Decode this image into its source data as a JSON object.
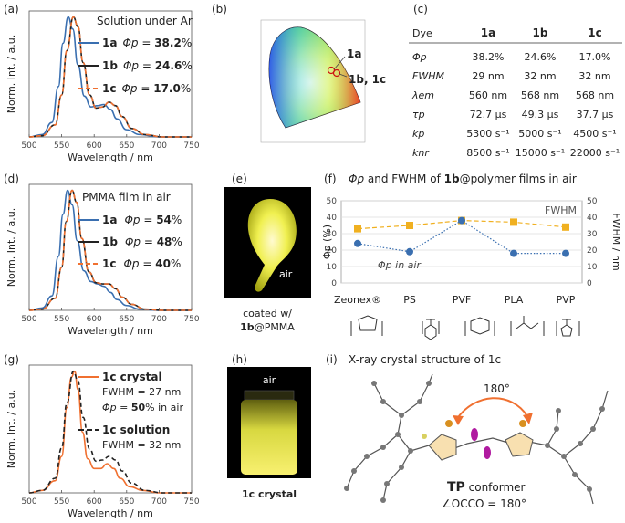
{
  "panels": {
    "a": {
      "label": "(a)",
      "title": "Solution under Ar",
      "xlabel": "Wavelength / nm",
      "ylabel": "Norm. Int. / a.u.",
      "xticks": [
        "500",
        "550",
        "600",
        "650",
        "700",
        "750"
      ],
      "legend": [
        {
          "dye": "1a",
          "phi": "Φp",
          "eq": " = ",
          "val": "38.2",
          "unit": "%"
        },
        {
          "dye": "1b",
          "phi": "Φp",
          "eq": " = ",
          "val": "24.6",
          "unit": "%"
        },
        {
          "dye": "1c",
          "phi": "Φp",
          "eq": " = ",
          "val": "17.0",
          "unit": "%"
        }
      ]
    },
    "b": {
      "label": "(b)",
      "ann1": "1a",
      "ann2": "1b, 1c"
    },
    "c": {
      "label": "(c)",
      "header": [
        "Dye",
        "1a",
        "1b",
        "1c"
      ],
      "rows": [
        {
          "name": "Φp",
          "v": [
            "38.2%",
            "24.6%",
            "17.0%"
          ]
        },
        {
          "name": "FWHM",
          "v": [
            "29 nm",
            "32 nm",
            "32 nm"
          ]
        },
        {
          "name": "λem",
          "v": [
            "560 nm",
            "568 nm",
            "568 nm"
          ]
        },
        {
          "name": "τp",
          "v": [
            "72.7 μs",
            "49.3 μs",
            "37.7 μs"
          ]
        },
        {
          "name": "kp",
          "v": [
            "5300 s⁻¹",
            "5000 s⁻¹",
            "4500 s⁻¹"
          ]
        },
        {
          "name": "knr",
          "v": [
            "8500 s⁻¹",
            "15000 s⁻¹",
            "22000 s⁻¹"
          ]
        }
      ]
    },
    "d": {
      "label": "(d)",
      "title": "PMMA film in air",
      "xlabel": "Wavelength / nm",
      "ylabel": "Norm. Int. / a.u.",
      "xticks": [
        "500",
        "550",
        "600",
        "650",
        "700",
        "750"
      ],
      "legend": [
        {
          "dye": "1a",
          "val": "54"
        },
        {
          "dye": "1b",
          "val": "48"
        },
        {
          "dye": "1c",
          "val": "40"
        }
      ]
    },
    "e": {
      "label": "(e)",
      "air": "air",
      "cap1": "coated w/",
      "cap2a": "1b",
      "cap2b": "@PMMA"
    },
    "f": {
      "label": "(f)",
      "title_a": "Φp",
      "title_b": " and FWHM of ",
      "title_c": "1b",
      "title_d": "@polymer films in air",
      "ylabel_left": "Φp (%)",
      "ylabel_right": "FWHM / nm",
      "yticks": [
        "0",
        "10",
        "20",
        "30",
        "40",
        "50"
      ],
      "fwhm_label": "FWHM",
      "phi_label": "Φp in air",
      "categories": [
        "Zeonex®",
        "PS",
        "PVF",
        "PLA",
        "PVP"
      ]
    },
    "g": {
      "label": "(g)",
      "xlabel": "Wavelength / nm",
      "ylabel": "Norm. Int. / a.u.",
      "xticks": [
        "500",
        "550",
        "600",
        "650",
        "700",
        "750"
      ],
      "l1": "1c crystal",
      "l2": "FWHM = 27 nm",
      "l3a": "Φp",
      "l3b": " = ",
      "l3c": "50",
      "l3d": "% in air",
      "l4": "1c solution",
      "l5": "FWHM = 32 nm"
    },
    "h": {
      "label": "(h)",
      "air": "air",
      "cap": "1c crystal"
    },
    "i": {
      "label": "(i)",
      "title": "X-ray crystal structure of 1c",
      "angle": "180°",
      "tp": "TP",
      "conformer": " conformer",
      "occo": "∠OCCO = 180°"
    }
  },
  "chart_data": [
    {
      "type": "line",
      "panel": "a",
      "title": "Solution under Ar",
      "xlabel": "Wavelength / nm",
      "ylabel": "Norm. Int. / a.u.",
      "xlim": [
        500,
        750
      ],
      "ylim": [
        0,
        1.05
      ],
      "series": [
        {
          "name": "1a",
          "color": "#3a6fb0",
          "x": [
            500,
            520,
            535,
            545,
            552,
            560,
            567,
            575,
            585,
            595,
            605,
            615,
            625,
            635,
            650,
            670,
            700,
            750
          ],
          "y": [
            0,
            0.02,
            0.12,
            0.42,
            0.78,
            1.0,
            0.9,
            0.6,
            0.34,
            0.25,
            0.26,
            0.27,
            0.23,
            0.15,
            0.06,
            0.02,
            0,
            0
          ]
        },
        {
          "name": "1b",
          "color": "#222222",
          "x": [
            500,
            520,
            540,
            550,
            558,
            568,
            575,
            583,
            593,
            603,
            613,
            623,
            633,
            643,
            658,
            678,
            705,
            750
          ],
          "y": [
            0,
            0.01,
            0.1,
            0.35,
            0.72,
            1.0,
            0.92,
            0.62,
            0.35,
            0.24,
            0.25,
            0.29,
            0.26,
            0.17,
            0.07,
            0.02,
            0,
            0
          ]
        },
        {
          "name": "1c",
          "color": "#f07030",
          "x": [
            500,
            520,
            540,
            550,
            558,
            568,
            575,
            583,
            593,
            603,
            613,
            623,
            633,
            643,
            658,
            678,
            705,
            750
          ],
          "y": [
            0,
            0.01,
            0.1,
            0.35,
            0.72,
            1.0,
            0.92,
            0.62,
            0.35,
            0.24,
            0.25,
            0.29,
            0.26,
            0.17,
            0.07,
            0.02,
            0,
            0
          ]
        }
      ]
    },
    {
      "type": "line",
      "panel": "d",
      "title": "PMMA film in air",
      "xlabel": "Wavelength / nm",
      "ylabel": "Norm. Int. / a.u.",
      "xlim": [
        500,
        750
      ],
      "ylim": [
        0,
        1.05
      ],
      "series": [
        {
          "name": "1a",
          "color": "#3a6fb0",
          "x": [
            500,
            520,
            535,
            545,
            552,
            559,
            566,
            574,
            584,
            595,
            605,
            615,
            625,
            635,
            650,
            670,
            700,
            750
          ],
          "y": [
            0,
            0.02,
            0.12,
            0.45,
            0.8,
            1.0,
            0.88,
            0.58,
            0.33,
            0.24,
            0.22,
            0.2,
            0.15,
            0.09,
            0.04,
            0.01,
            0,
            0
          ]
        },
        {
          "name": "1b",
          "color": "#222222",
          "x": [
            500,
            520,
            540,
            550,
            557,
            566,
            573,
            581,
            592,
            603,
            613,
            623,
            633,
            643,
            658,
            678,
            705,
            750
          ],
          "y": [
            0,
            0.01,
            0.1,
            0.36,
            0.74,
            1.0,
            0.9,
            0.6,
            0.32,
            0.23,
            0.22,
            0.22,
            0.18,
            0.11,
            0.05,
            0.01,
            0,
            0
          ]
        },
        {
          "name": "1c",
          "color": "#f07030",
          "x": [
            500,
            520,
            540,
            550,
            557,
            566,
            573,
            581,
            592,
            603,
            613,
            623,
            633,
            643,
            658,
            678,
            705,
            750
          ],
          "y": [
            0,
            0.01,
            0.1,
            0.36,
            0.74,
            1.0,
            0.9,
            0.6,
            0.32,
            0.23,
            0.22,
            0.22,
            0.18,
            0.11,
            0.05,
            0.01,
            0,
            0
          ]
        }
      ]
    },
    {
      "type": "line",
      "panel": "g",
      "xlabel": "Wavelength / nm",
      "ylabel": "Norm. Int. / a.u.",
      "xlim": [
        500,
        750
      ],
      "ylim": [
        0,
        1.05
      ],
      "series": [
        {
          "name": "1c crystal",
          "color": "#f07030",
          "x": [
            500,
            520,
            540,
            550,
            558,
            565,
            570,
            575,
            582,
            590,
            600,
            610,
            620,
            630,
            640,
            655,
            675,
            700,
            750
          ],
          "y": [
            0,
            0.02,
            0.1,
            0.3,
            0.7,
            0.95,
            1.0,
            0.85,
            0.5,
            0.28,
            0.2,
            0.2,
            0.24,
            0.2,
            0.12,
            0.05,
            0.02,
            0,
            0
          ]
        },
        {
          "name": "1c solution",
          "color": "#222222",
          "x": [
            500,
            520,
            540,
            550,
            558,
            568,
            575,
            583,
            593,
            603,
            613,
            623,
            633,
            643,
            658,
            678,
            705,
            750
          ],
          "y": [
            0,
            0.02,
            0.12,
            0.37,
            0.74,
            1.0,
            0.92,
            0.62,
            0.36,
            0.26,
            0.27,
            0.3,
            0.27,
            0.18,
            0.08,
            0.02,
            0,
            0
          ]
        }
      ]
    },
    {
      "type": "line",
      "panel": "f",
      "categories": [
        "Zeonex®",
        "PS",
        "PVF",
        "PLA",
        "PVP"
      ],
      "ylim": [
        0,
        50
      ],
      "series": [
        {
          "name": "FWHM",
          "color": "#f0b020",
          "values": [
            33,
            35,
            38,
            37,
            34
          ]
        },
        {
          "name": "Φp in air",
          "color": "#3a6fb0",
          "values": [
            24,
            19,
            38,
            18,
            18
          ]
        }
      ]
    }
  ]
}
